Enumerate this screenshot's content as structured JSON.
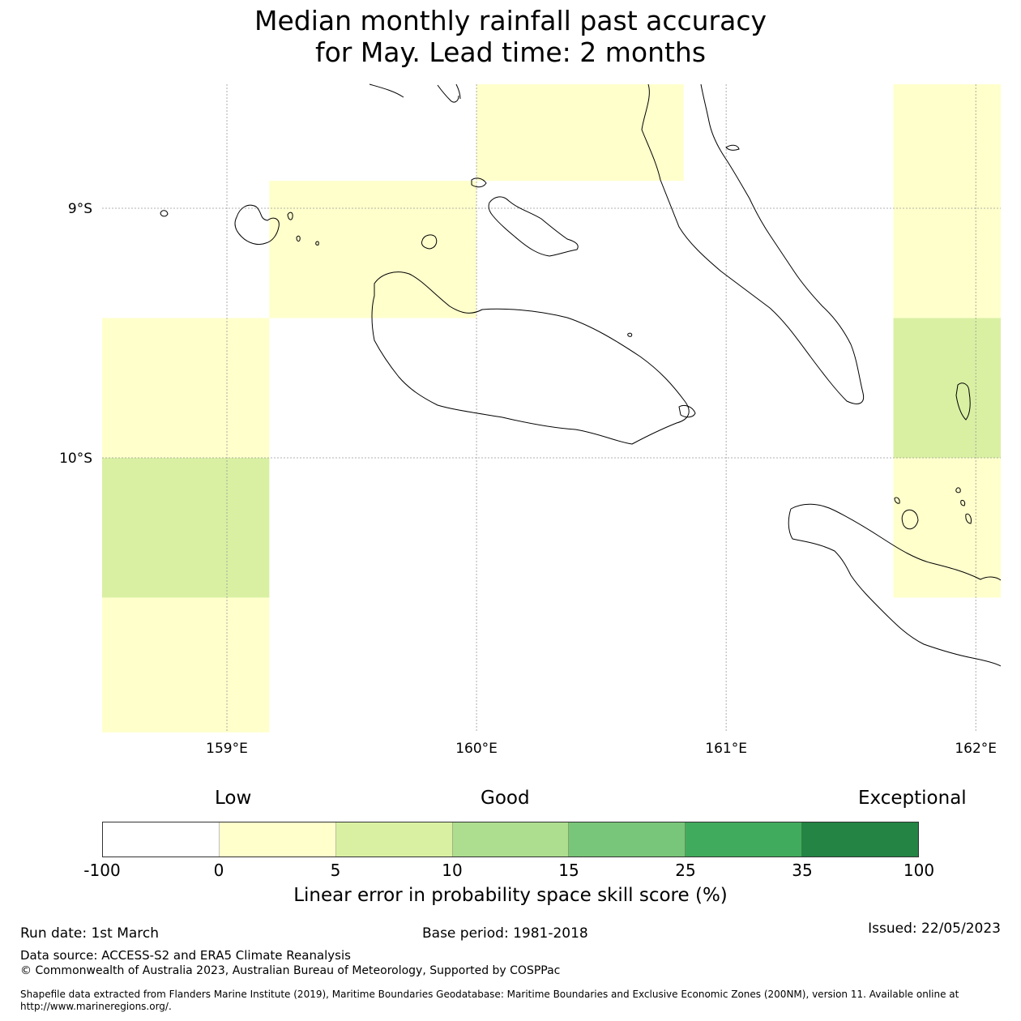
{
  "title": {
    "line1": "Median monthly rainfall past accuracy",
    "line2": "for May. Lead time: 2 months"
  },
  "map": {
    "extent": {
      "lon_min": 158.5,
      "lon_max": 162.1,
      "lat_min": -11.1,
      "lat_max": -8.5
    },
    "lon_ticks": [
      {
        "value": 159,
        "label": "159°E"
      },
      {
        "value": 160,
        "label": "160°E"
      },
      {
        "value": 161,
        "label": "161°E"
      },
      {
        "value": 162,
        "label": "162°E"
      }
    ],
    "lat_ticks": [
      {
        "value": -9,
        "label": "9°S"
      },
      {
        "value": -10,
        "label": "10°S"
      }
    ],
    "grid": true,
    "cells": [
      {
        "lon0": 159.17,
        "lon1": 160.0,
        "lat0": -9.44,
        "lat1": -8.89,
        "category": "0-5",
        "color": "#ffffcc"
      },
      {
        "lon0": 160.0,
        "lon1": 160.83,
        "lat0": -8.89,
        "lat1": -8.5,
        "category": "0-5",
        "color": "#ffffcc"
      },
      {
        "lon0": 158.5,
        "lon1": 159.17,
        "lat0": -10.0,
        "lat1": -9.44,
        "category": "0-5",
        "color": "#ffffcc"
      },
      {
        "lon0": 158.5,
        "lon1": 159.17,
        "lat0": -10.56,
        "lat1": -10.0,
        "category": "5-10",
        "color": "#d9f0a3"
      },
      {
        "lon0": 158.5,
        "lon1": 159.17,
        "lat0": -11.1,
        "lat1": -10.56,
        "category": "0-5",
        "color": "#ffffcc"
      },
      {
        "lon0": 161.67,
        "lon1": 162.1,
        "lat0": -9.44,
        "lat1": -8.5,
        "category": "0-5",
        "color": "#ffffcc"
      },
      {
        "lon0": 161.67,
        "lon1": 162.1,
        "lat0": -10.0,
        "lat1": -9.44,
        "category": "5-10",
        "color": "#d9f0a3"
      },
      {
        "lon0": 161.67,
        "lon1": 162.1,
        "lat0": -10.56,
        "lat1": -10.0,
        "category": "0-5",
        "color": "#ffffcc"
      }
    ]
  },
  "colorbar": {
    "categories": {
      "low": "Low",
      "good": "Good",
      "exceptional": "Exceptional"
    },
    "ticks": [
      "-100",
      "0",
      "5",
      "10",
      "15",
      "25",
      "35",
      "100"
    ],
    "colors": [
      "#ffffff",
      "#ffffcc",
      "#d9f0a3",
      "#addd8e",
      "#78c679",
      "#41ab5d",
      "#238443"
    ],
    "title": "Linear error in probability space skill score (%)"
  },
  "footer": {
    "run_date": "Run date: 1st March",
    "base_period": "Base period: 1981-2018",
    "issued": "Issued: 22/05/2023",
    "data_source": "Data source: ACCESS-S2 and ERA5 Climate Reanalysis",
    "copyright": "© Commonwealth of Australia 2023, Australian Bureau of Meteorology, Supported by COSPPac",
    "shapefile": "Shapefile data extracted from Flanders Marine Institute (2019), Maritime Boundaries Geodatabase: Maritime Boundaries and Exclusive Economic Zones (200NM), version 11. Available online at http://www.marineregions.org/."
  }
}
